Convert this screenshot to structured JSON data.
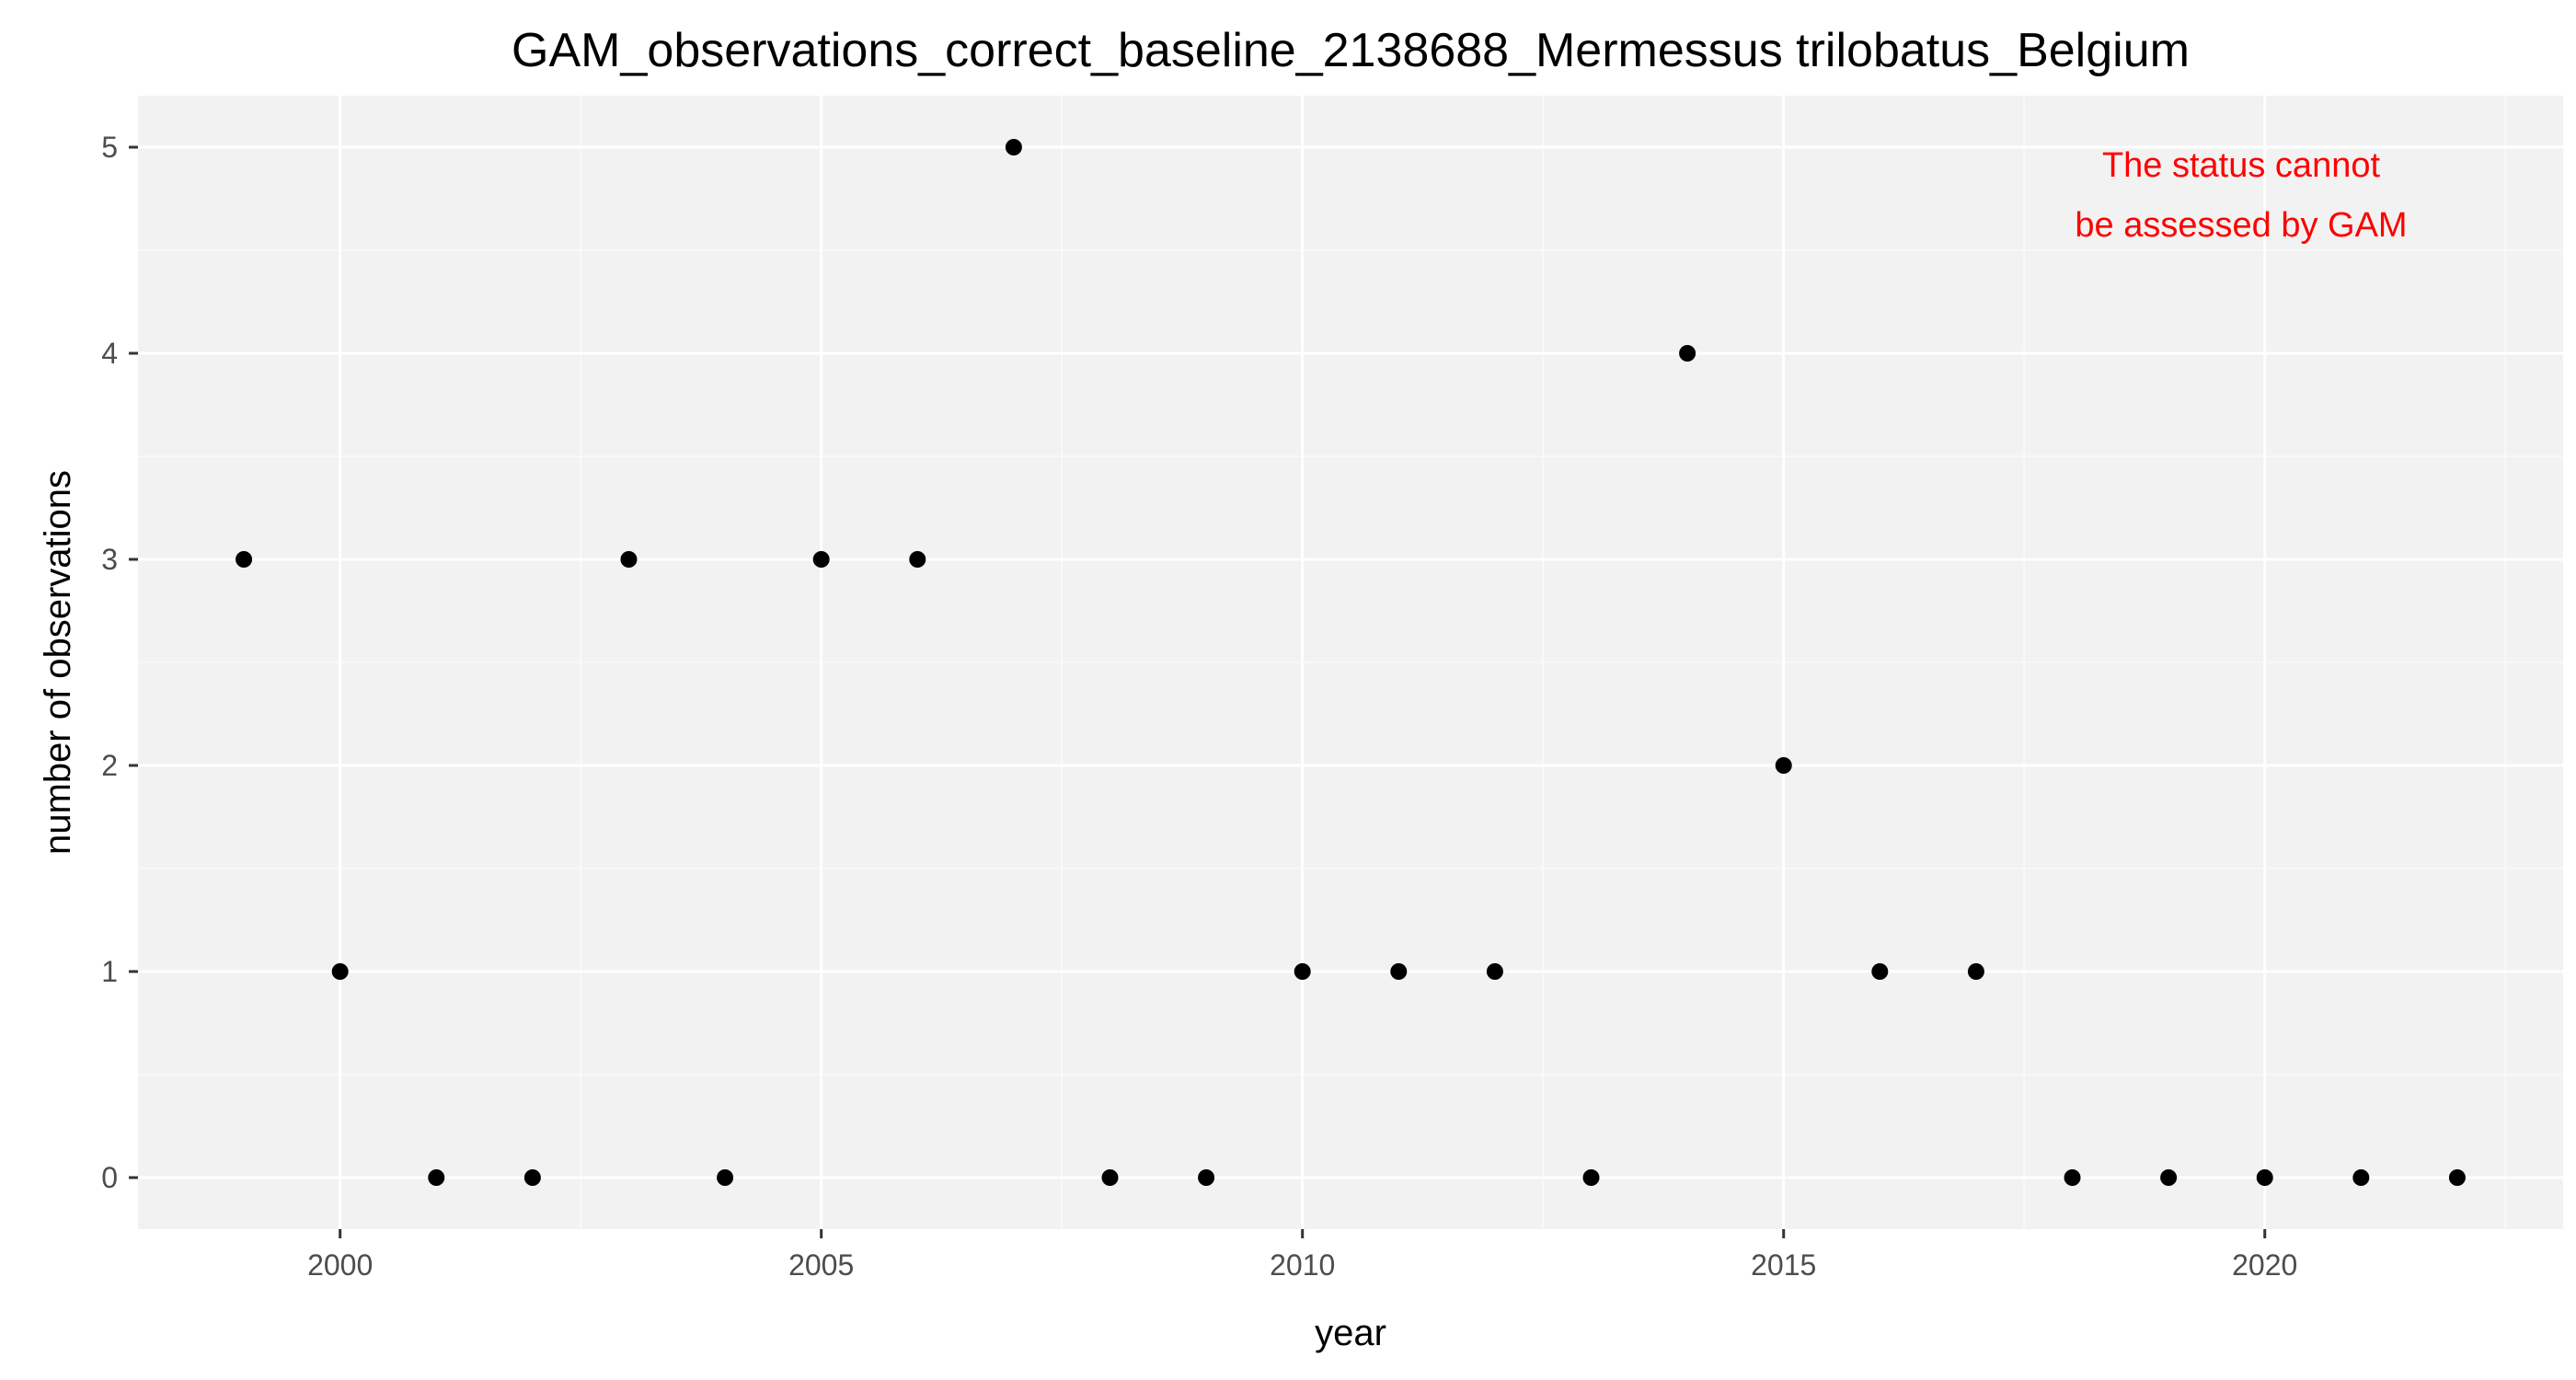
{
  "chart_data": {
    "type": "scatter",
    "title": "GAM_observations_correct_baseline_2138688_Mermessus trilobatus_Belgium",
    "xlabel": "year",
    "ylabel": "number of observations",
    "xlim": [
      1997.9,
      2023.1
    ],
    "ylim": [
      -0.25,
      5.25
    ],
    "x_ticks": [
      2000,
      2005,
      2010,
      2015,
      2020
    ],
    "y_ticks": [
      0,
      1,
      2,
      3,
      4,
      5
    ],
    "grid": true,
    "points": [
      {
        "x": 1999,
        "y": 3
      },
      {
        "x": 2000,
        "y": 1
      },
      {
        "x": 2001,
        "y": 0
      },
      {
        "x": 2002,
        "y": 0
      },
      {
        "x": 2003,
        "y": 3
      },
      {
        "x": 2004,
        "y": 0
      },
      {
        "x": 2005,
        "y": 3
      },
      {
        "x": 2006,
        "y": 3
      },
      {
        "x": 2007,
        "y": 5
      },
      {
        "x": 2008,
        "y": 0
      },
      {
        "x": 2009,
        "y": 0
      },
      {
        "x": 2010,
        "y": 1
      },
      {
        "x": 2011,
        "y": 1
      },
      {
        "x": 2012,
        "y": 1
      },
      {
        "x": 2013,
        "y": 0
      },
      {
        "x": 2014,
        "y": 4
      },
      {
        "x": 2015,
        "y": 2
      },
      {
        "x": 2016,
        "y": 1
      },
      {
        "x": 2017,
        "y": 1
      },
      {
        "x": 2018,
        "y": 0
      },
      {
        "x": 2019,
        "y": 0
      },
      {
        "x": 2020,
        "y": 0
      },
      {
        "x": 2021,
        "y": 0
      },
      {
        "x": 2022,
        "y": 0
      }
    ],
    "annotation": {
      "lines": [
        "The status cannot",
        "be assessed by GAM"
      ],
      "color": "#ff0000"
    },
    "colors": {
      "panel": "#f2f2f2",
      "grid_major": "#ffffff",
      "grid_minor": "#fafafa",
      "point": "#000000"
    }
  }
}
